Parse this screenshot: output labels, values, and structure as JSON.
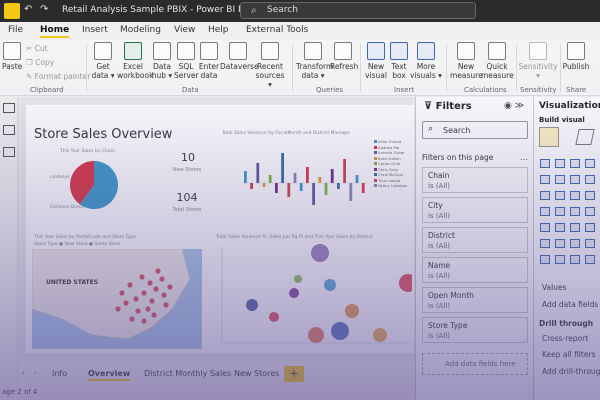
{
  "titlebar": {
    "title": "Retail Analysis Sample PBIX - Power BI Des...",
    "search_placeholder": "Search"
  },
  "ribbon_tabs": [
    "File",
    "Home",
    "Insert",
    "Modeling",
    "View",
    "Help",
    "External Tools"
  ],
  "ribbon": {
    "clipboard": {
      "paste": "Paste",
      "cut": "Cut",
      "copy": "Copy",
      "format_painter": "Format painter",
      "group": "Clipboard"
    },
    "data": {
      "get_data": [
        "Get",
        "data ▾"
      ],
      "excel": [
        "Excel",
        "workbook"
      ],
      "data_hub": [
        "Data",
        "hub ▾"
      ],
      "sql": [
        "SQL",
        "Server"
      ],
      "enter": [
        "Enter",
        "data"
      ],
      "dataverse": [
        "Dataverse",
        ""
      ],
      "recent": [
        "Recent",
        "sources ▾"
      ],
      "group": "Data"
    },
    "queries": {
      "transform": [
        "Transform",
        "data ▾"
      ],
      "refresh": [
        "Refresh",
        ""
      ],
      "group": "Queries"
    },
    "insert": {
      "new_visual": [
        "New",
        "visual"
      ],
      "text_box": [
        "Text",
        "box"
      ],
      "more": [
        "More",
        "visuals ▾"
      ],
      "group": "Insert"
    },
    "calculations": {
      "new_measure": [
        "New",
        "measure"
      ],
      "quick_measure": [
        "Quick",
        "measure"
      ],
      "group": "Calculations"
    },
    "sensitivity": {
      "label": [
        "Sensitivity",
        "▾"
      ],
      "group": "Sensitivity"
    },
    "share": {
      "publish": [
        "Publish",
        ""
      ],
      "group": "Share"
    }
  },
  "report": {
    "title": "Store Sales Overview",
    "pie_title": "This Year Sales by Chain",
    "pie_labels": [
      "Lindseys",
      "Fashions Direct"
    ],
    "kpi1": {
      "value": "10",
      "label": "New Stores"
    },
    "kpi2": {
      "value": "104",
      "label": "Total Stores"
    },
    "bar_title": "Total Sales Variance by FiscalMonth and District Manager",
    "bar_legend": [
      "Allan Guinot",
      "Andrew Ma",
      "Annelie Zubar",
      "Brad Sutton",
      "Carlos Grilo",
      "Chris Gray",
      "Chris McGurk",
      "Tina Lassila",
      "Valery Ushakov"
    ],
    "map_title": "This Year Sales by PostalCode and Store Type",
    "map_legend": "Store Type  ● New Store  ● Same Store",
    "map_region": "UNITED STATES",
    "scatter_title": "Total Sales Variance %, Sales per Sq Ft and This Year Sales by District",
    "pie_values": [
      0.6,
      0.4
    ],
    "colors": {
      "accent": "#f2c811",
      "pie_a": "#3b9ac9",
      "pie_b": "#d93644"
    }
  },
  "filters": {
    "title": "Filters",
    "search": "Search",
    "on_page": "Filters on this page",
    "items": [
      {
        "name": "Chain",
        "value": "is (All)"
      },
      {
        "name": "City",
        "value": "is (All)"
      },
      {
        "name": "District",
        "value": "is (All)"
      },
      {
        "name": "Name",
        "value": "is (All)"
      },
      {
        "name": "Open Month",
        "value": "is (All)"
      },
      {
        "name": "Store Type",
        "value": "is (All)"
      }
    ],
    "add_fields": "Add data fields here"
  },
  "visualizations": {
    "title": "Visualizations",
    "build": "Build visual",
    "values": "Values",
    "add_fields": "Add data fields he",
    "drill": "Drill through",
    "cross_report": "Cross-report",
    "keep_filters": "Keep all filters",
    "add_drill": "Add drill-through f"
  },
  "pages": {
    "tabs": [
      "Info",
      "Overview",
      "District Monthly Sales",
      "New Stores"
    ],
    "add": "+",
    "status": "age 2 of 4"
  }
}
